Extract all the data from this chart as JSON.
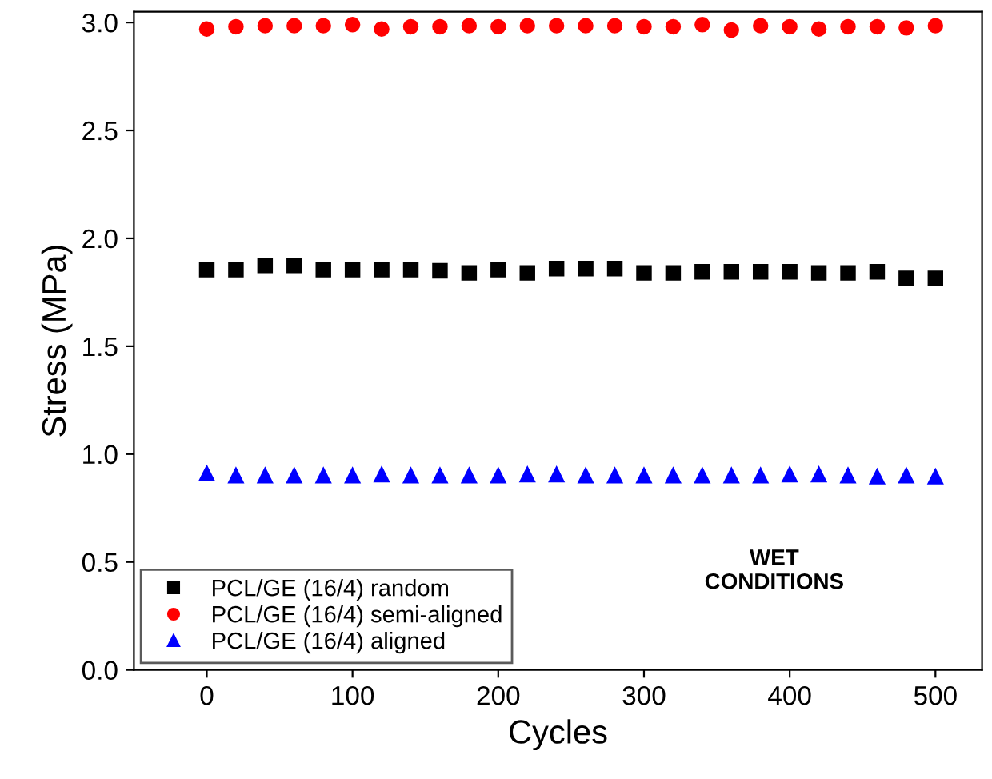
{
  "chart_data": {
    "type": "scatter",
    "xlabel": "Cycles",
    "ylabel": "Stress (MPa)",
    "x": [
      0,
      20,
      40,
      60,
      80,
      100,
      120,
      140,
      160,
      180,
      200,
      220,
      240,
      260,
      280,
      300,
      320,
      340,
      360,
      380,
      400,
      420,
      440,
      460,
      480,
      500
    ],
    "series": [
      {
        "name": "PCL/GE (16/4) random",
        "color": "#000000",
        "marker": "square",
        "values": [
          1.855,
          1.855,
          1.875,
          1.875,
          1.855,
          1.855,
          1.855,
          1.855,
          1.85,
          1.84,
          1.855,
          1.84,
          1.86,
          1.86,
          1.86,
          1.84,
          1.84,
          1.845,
          1.845,
          1.845,
          1.845,
          1.84,
          1.84,
          1.845,
          1.815,
          1.815
        ]
      },
      {
        "name": "PCL/GE (16/4) semi-aligned",
        "color": "#ff0000",
        "marker": "circle",
        "values": [
          2.97,
          2.98,
          2.985,
          2.985,
          2.985,
          2.99,
          2.97,
          2.98,
          2.98,
          2.985,
          2.98,
          2.985,
          2.985,
          2.985,
          2.985,
          2.98,
          2.98,
          2.99,
          2.965,
          2.985,
          2.98,
          2.97,
          2.98,
          2.98,
          2.975,
          2.985
        ]
      },
      {
        "name": "PCL/GE (16/4) aligned",
        "color": "#0000ff",
        "marker": "triangle",
        "values": [
          0.91,
          0.9,
          0.9,
          0.9,
          0.9,
          0.9,
          0.905,
          0.9,
          0.9,
          0.9,
          0.9,
          0.905,
          0.905,
          0.9,
          0.9,
          0.9,
          0.9,
          0.9,
          0.9,
          0.9,
          0.905,
          0.905,
          0.9,
          0.895,
          0.9,
          0.895
        ]
      }
    ],
    "xlim": [
      -50,
      532
    ],
    "xticks": [
      0,
      100,
      200,
      300,
      400,
      500
    ],
    "ylim": [
      0,
      3.05
    ],
    "yticks": [
      {
        "value": 0,
        "label": "0.0"
      },
      0.5,
      {
        "value": 1,
        "label": "1.0"
      },
      1.5,
      {
        "value": 2,
        "label": "2.0"
      },
      2.5,
      {
        "value": 3,
        "label": "3.0"
      }
    ],
    "annotations": [
      "WET\nCONDITIONS"
    ],
    "legend": "bottom left",
    "grid": false
  }
}
